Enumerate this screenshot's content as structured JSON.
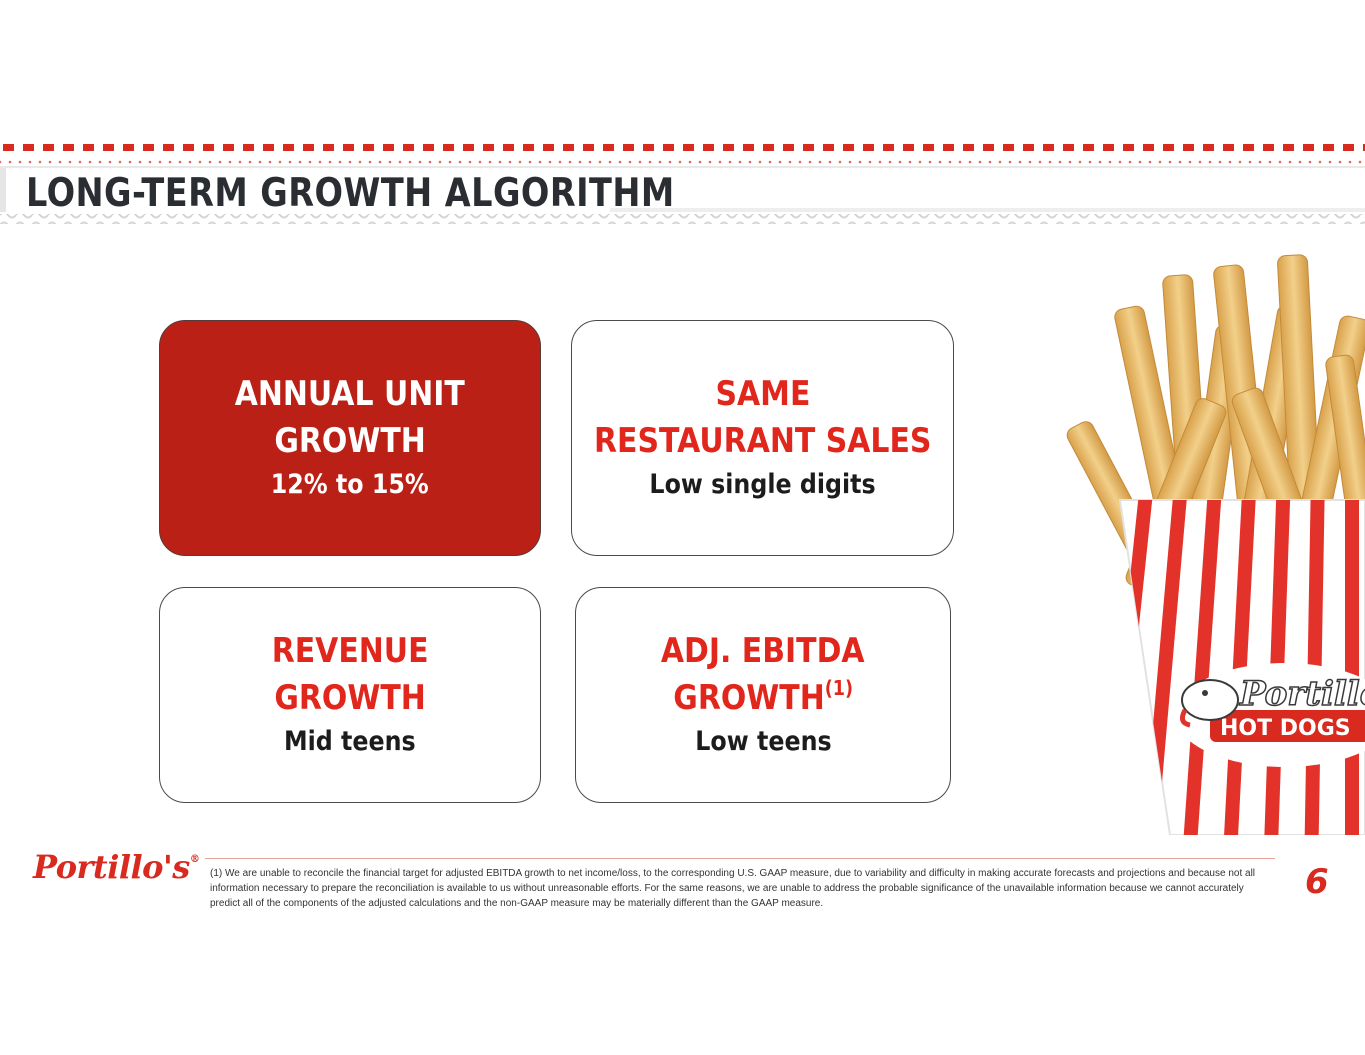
{
  "header": {
    "title": "LONG-TERM GROWTH ALGORITHM"
  },
  "cards": {
    "annual_unit": {
      "title_line1": "ANNUAL UNIT",
      "title_line2": "GROWTH",
      "value": "12% to 15%"
    },
    "same_restaurant": {
      "title_line1": "SAME",
      "title_line2": "RESTAURANT SALES",
      "value": "Low single digits"
    },
    "revenue": {
      "title_line1": "REVENUE",
      "title_line2": "GROWTH",
      "value": "Mid teens"
    },
    "ebitda": {
      "title_line1": "ADJ. EBITDA",
      "title_line2": "GROWTH",
      "sup": "(1)",
      "value": "Low teens"
    }
  },
  "footer": {
    "logo_text": "Portillo's",
    "logo_mark": "®",
    "footnote": "(1) We are unable to reconcile the financial target for adjusted EBITDA growth to net income/loss, to the corresponding U.S. GAAP measure, due to variability and difficulty in making accurate forecasts and projections and because not all information necessary to prepare the reconciliation is available to us without unreasonable efforts. For the same reasons, we are unable to address the probable significance of the unavailable information because we cannot accurately predict all of the components of the adjusted calculations and the non-GAAP measure may be materially different than the GAAP measure.",
    "page_number": "6"
  },
  "image": {
    "fries_box_text_line1": "Portillo's",
    "fries_box_text_line2": "HOT DOGS",
    "icon": "fries-box-image"
  },
  "colors": {
    "brand_red": "#e1261c",
    "card_fill": "#bb2016",
    "title_gray": "#2a2e33"
  }
}
